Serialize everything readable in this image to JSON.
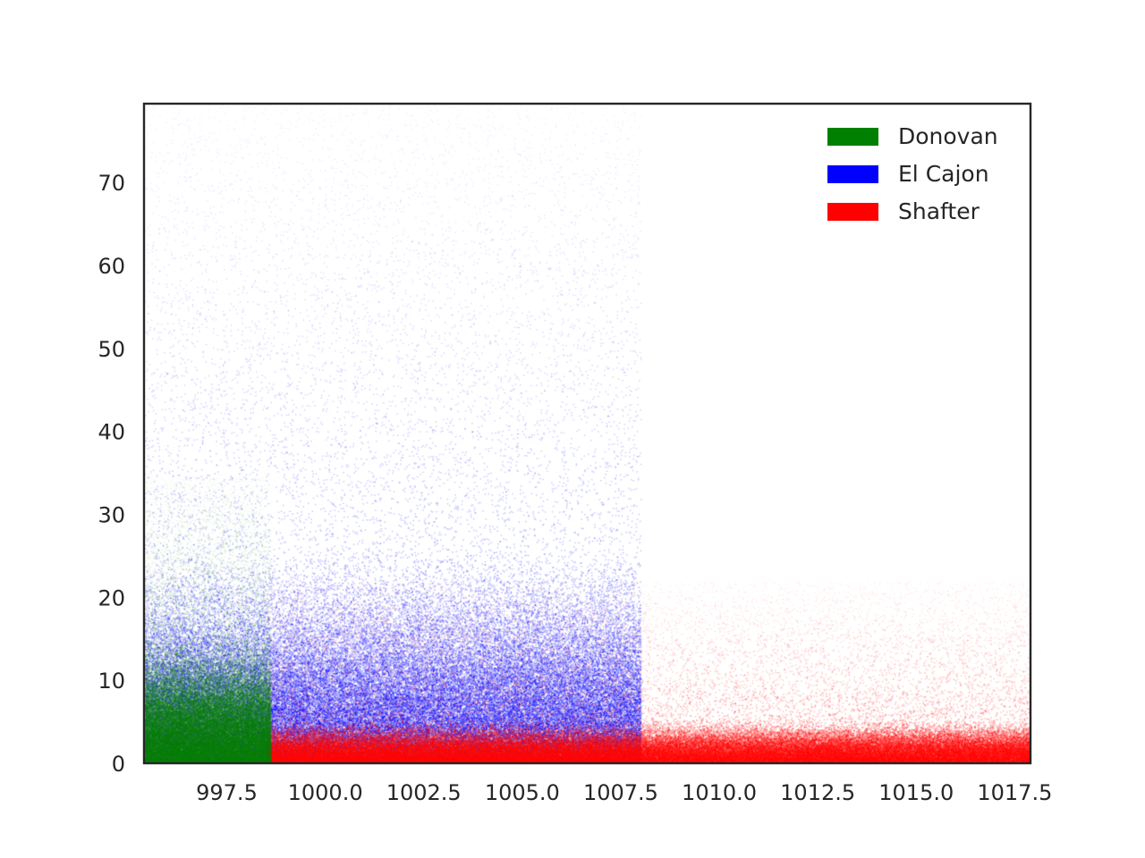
{
  "chart_data": {
    "type": "scatter",
    "title": "",
    "xlabel": "",
    "ylabel": "",
    "xlim": [
      995.4,
      1017.9
    ],
    "ylim": [
      0,
      79.5
    ],
    "x_ticks": [
      997.5,
      1000.0,
      1002.5,
      1005.0,
      1007.5,
      1010.0,
      1012.5,
      1015.0,
      1017.5
    ],
    "x_tick_labels": [
      "997.5",
      "1000.0",
      "1002.5",
      "1005.0",
      "1007.5",
      "1010.0",
      "1012.5",
      "1015.0",
      "1017.5"
    ],
    "y_ticks": [
      0,
      10,
      20,
      30,
      40,
      50,
      60,
      70
    ],
    "y_tick_labels": [
      "0",
      "10",
      "20",
      "30",
      "40",
      "50",
      "60",
      "70"
    ],
    "grid": false,
    "legend_position": "top-right",
    "series": [
      {
        "name": "Donovan",
        "color": "#008000",
        "x_range": [
          995.4,
          998.6
        ],
        "y_peak": 3,
        "y_extent": 35,
        "points": 45000
      },
      {
        "name": "El Cajon",
        "color": "#0000ff",
        "x_range": [
          995.4,
          1008.0
        ],
        "y_peak": 5,
        "y_extent": 79.5,
        "points": 90000
      },
      {
        "name": "Shafter",
        "color": "#ff0000",
        "x_range": [
          998.5,
          1017.9
        ],
        "y_peak": 1,
        "y_extent": 22,
        "points": 110000
      }
    ]
  }
}
